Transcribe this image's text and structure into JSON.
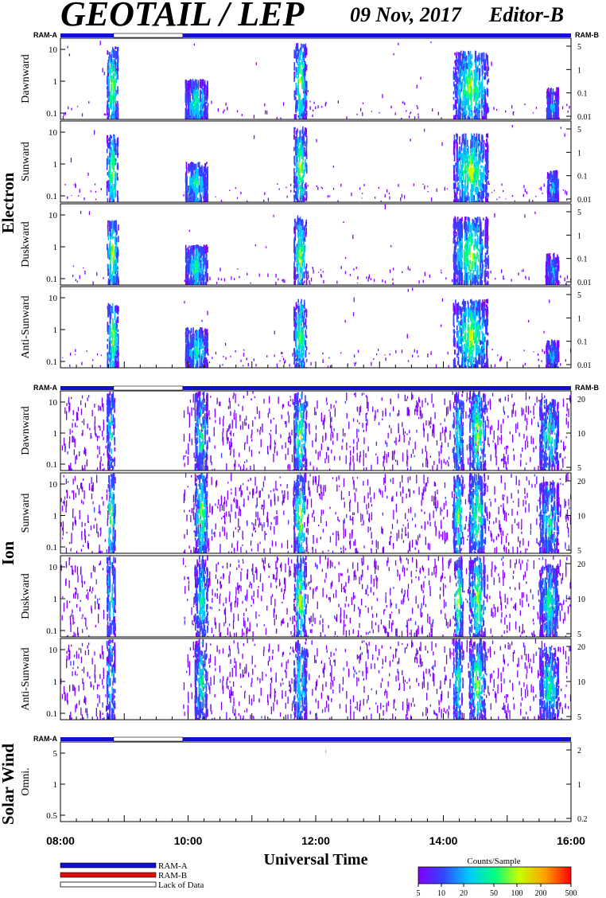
{
  "header": {
    "title": "GEOTAIL / LEP",
    "date": "09 Nov, 2017",
    "editor": "Editor-B"
  },
  "mode_labels": {
    "ram_a": "RAM-A",
    "ram_b": "RAM-B"
  },
  "groups": {
    "electron": "Electron",
    "ion": "Ion",
    "solar_wind": "Solar Wind"
  },
  "xaxis": {
    "title": "Universal Time",
    "tick_labels": [
      "08:00",
      "10:00",
      "12:00",
      "14:00",
      "16:00"
    ]
  },
  "legend": {
    "ram_a": "RAM-A",
    "ram_b": "RAM-B",
    "lack": "Lack of Data",
    "colorbar_title": "Counts/Sample",
    "colorbar_ticks": [
      "5",
      "10",
      "20",
      "50",
      "100",
      "200",
      "500"
    ]
  },
  "colors": {
    "ram_a": "#1111cc",
    "ram_b": "#dd1111",
    "colormap": [
      "#8000ff",
      "#3344ff",
      "#00c8ff",
      "#00ff80",
      "#c8ff00",
      "#ffa000",
      "#ff0000"
    ]
  },
  "chart_data": {
    "type": "heatmap",
    "x_range_hours": [
      8,
      16
    ],
    "mode_bar": [
      {
        "mode": "RAM-A",
        "from": "08:00",
        "to": "08:50"
      },
      {
        "mode": "Lack of Data",
        "from": "08:50",
        "to": "09:55"
      },
      {
        "mode": "RAM-A",
        "from": "09:55",
        "to": "16:00"
      }
    ],
    "panels": [
      {
        "group": "Electron",
        "label": "Dawnward",
        "left_ticks": [
          "10",
          "1",
          "0.1"
        ],
        "right_ticks": [
          "5",
          "1",
          "0.1",
          "0.01"
        ],
        "bg": "sparse",
        "bursts": [
          [
            8.72,
            8.9,
            0.9,
            "hi"
          ],
          [
            9.95,
            10.3,
            0.5,
            "mid"
          ],
          [
            11.65,
            11.85,
            0.95,
            "hi"
          ],
          [
            14.15,
            14.7,
            0.85,
            "hi"
          ],
          [
            15.6,
            15.8,
            0.4,
            "low"
          ]
        ]
      },
      {
        "group": "Electron",
        "label": "Sunward",
        "left_ticks": [
          "10",
          "1",
          "0.1"
        ],
        "right_ticks": [
          "5",
          "1",
          "0.1",
          "0.01"
        ],
        "bg": "sparse",
        "bursts": [
          [
            8.72,
            8.9,
            0.85,
            "hi"
          ],
          [
            9.95,
            10.3,
            0.5,
            "mid"
          ],
          [
            11.65,
            11.85,
            0.95,
            "hi"
          ],
          [
            14.15,
            14.7,
            0.85,
            "hi"
          ],
          [
            15.6,
            15.8,
            0.4,
            "low"
          ]
        ]
      },
      {
        "group": "Electron",
        "label": "Duskward",
        "left_ticks": [
          "10",
          "1",
          "0.1"
        ],
        "right_ticks": [
          "5",
          "1",
          "0.1",
          "0.01"
        ],
        "bg": "sparse",
        "bursts": [
          [
            8.72,
            8.9,
            0.8,
            "hi"
          ],
          [
            9.95,
            10.3,
            0.5,
            "mid"
          ],
          [
            11.65,
            11.85,
            0.85,
            "hi"
          ],
          [
            14.15,
            14.7,
            0.85,
            "hi"
          ],
          [
            15.6,
            15.8,
            0.4,
            "low"
          ]
        ]
      },
      {
        "group": "Electron",
        "label": "Anti-Sunward",
        "left_ticks": [
          "10",
          "1",
          "0.1"
        ],
        "right_ticks": [
          "5",
          "1",
          "0.1",
          "0.01"
        ],
        "bg": "sparse",
        "bursts": [
          [
            8.72,
            8.9,
            0.8,
            "hi"
          ],
          [
            9.95,
            10.3,
            0.5,
            "mid"
          ],
          [
            11.65,
            11.85,
            0.85,
            "hi"
          ],
          [
            14.15,
            14.7,
            0.85,
            "hi"
          ],
          [
            15.6,
            15.8,
            0.35,
            "low"
          ]
        ]
      },
      {
        "group": "Ion",
        "label": "Dawnward",
        "left_ticks": [
          "10",
          "1",
          "0.1"
        ],
        "right_ticks": [
          "20",
          "10",
          "5"
        ],
        "bg": "dense",
        "bursts": [
          [
            8.72,
            8.85,
            1,
            "mid"
          ],
          [
            10.1,
            10.3,
            1,
            "mid"
          ],
          [
            11.65,
            11.85,
            1,
            "hi"
          ],
          [
            14.15,
            14.3,
            1,
            "mid"
          ],
          [
            14.4,
            14.65,
            1,
            "hi"
          ],
          [
            15.5,
            15.8,
            0.9,
            "mid"
          ]
        ]
      },
      {
        "group": "Ion",
        "label": "Sunward",
        "left_ticks": [
          "10",
          "1",
          "0.1"
        ],
        "right_ticks": [
          "20",
          "10",
          "5"
        ],
        "bg": "dense",
        "bursts": [
          [
            8.72,
            8.85,
            1,
            "hi"
          ],
          [
            10.1,
            10.3,
            1,
            "hi"
          ],
          [
            11.65,
            11.85,
            1,
            "hi"
          ],
          [
            14.15,
            14.3,
            1,
            "hi"
          ],
          [
            14.4,
            14.65,
            1,
            "hi"
          ],
          [
            15.5,
            15.8,
            0.9,
            "mid"
          ]
        ]
      },
      {
        "group": "Ion",
        "label": "Duskward",
        "left_ticks": [
          "10",
          "1",
          "0.1"
        ],
        "right_ticks": [
          "20",
          "10",
          "5"
        ],
        "bg": "dense",
        "bursts": [
          [
            8.72,
            8.85,
            1,
            "mid"
          ],
          [
            10.1,
            10.3,
            1,
            "mid"
          ],
          [
            11.65,
            11.85,
            1,
            "hi"
          ],
          [
            14.15,
            14.3,
            1,
            "hi"
          ],
          [
            14.4,
            14.65,
            1,
            "hi"
          ],
          [
            15.5,
            15.8,
            0.9,
            "mid"
          ]
        ]
      },
      {
        "group": "Ion",
        "label": "Anti-Sunward",
        "left_ticks": [
          "10",
          "1",
          "0.1"
        ],
        "right_ticks": [
          "20",
          "10",
          "5"
        ],
        "bg": "dense",
        "bursts": [
          [
            8.72,
            8.85,
            1,
            "mid"
          ],
          [
            10.1,
            10.3,
            1,
            "mid"
          ],
          [
            11.65,
            11.85,
            1,
            "mid"
          ],
          [
            14.15,
            14.3,
            1,
            "mid"
          ],
          [
            14.4,
            14.65,
            1,
            "hi"
          ],
          [
            15.5,
            15.8,
            0.9,
            "mid"
          ]
        ]
      },
      {
        "group": "Solar Wind",
        "label": "Omni.",
        "left_ticks": [
          "5",
          "1",
          "0.5"
        ],
        "right_ticks": [
          "2",
          "1",
          "0.2"
        ],
        "bg": "none",
        "bursts": []
      }
    ]
  }
}
